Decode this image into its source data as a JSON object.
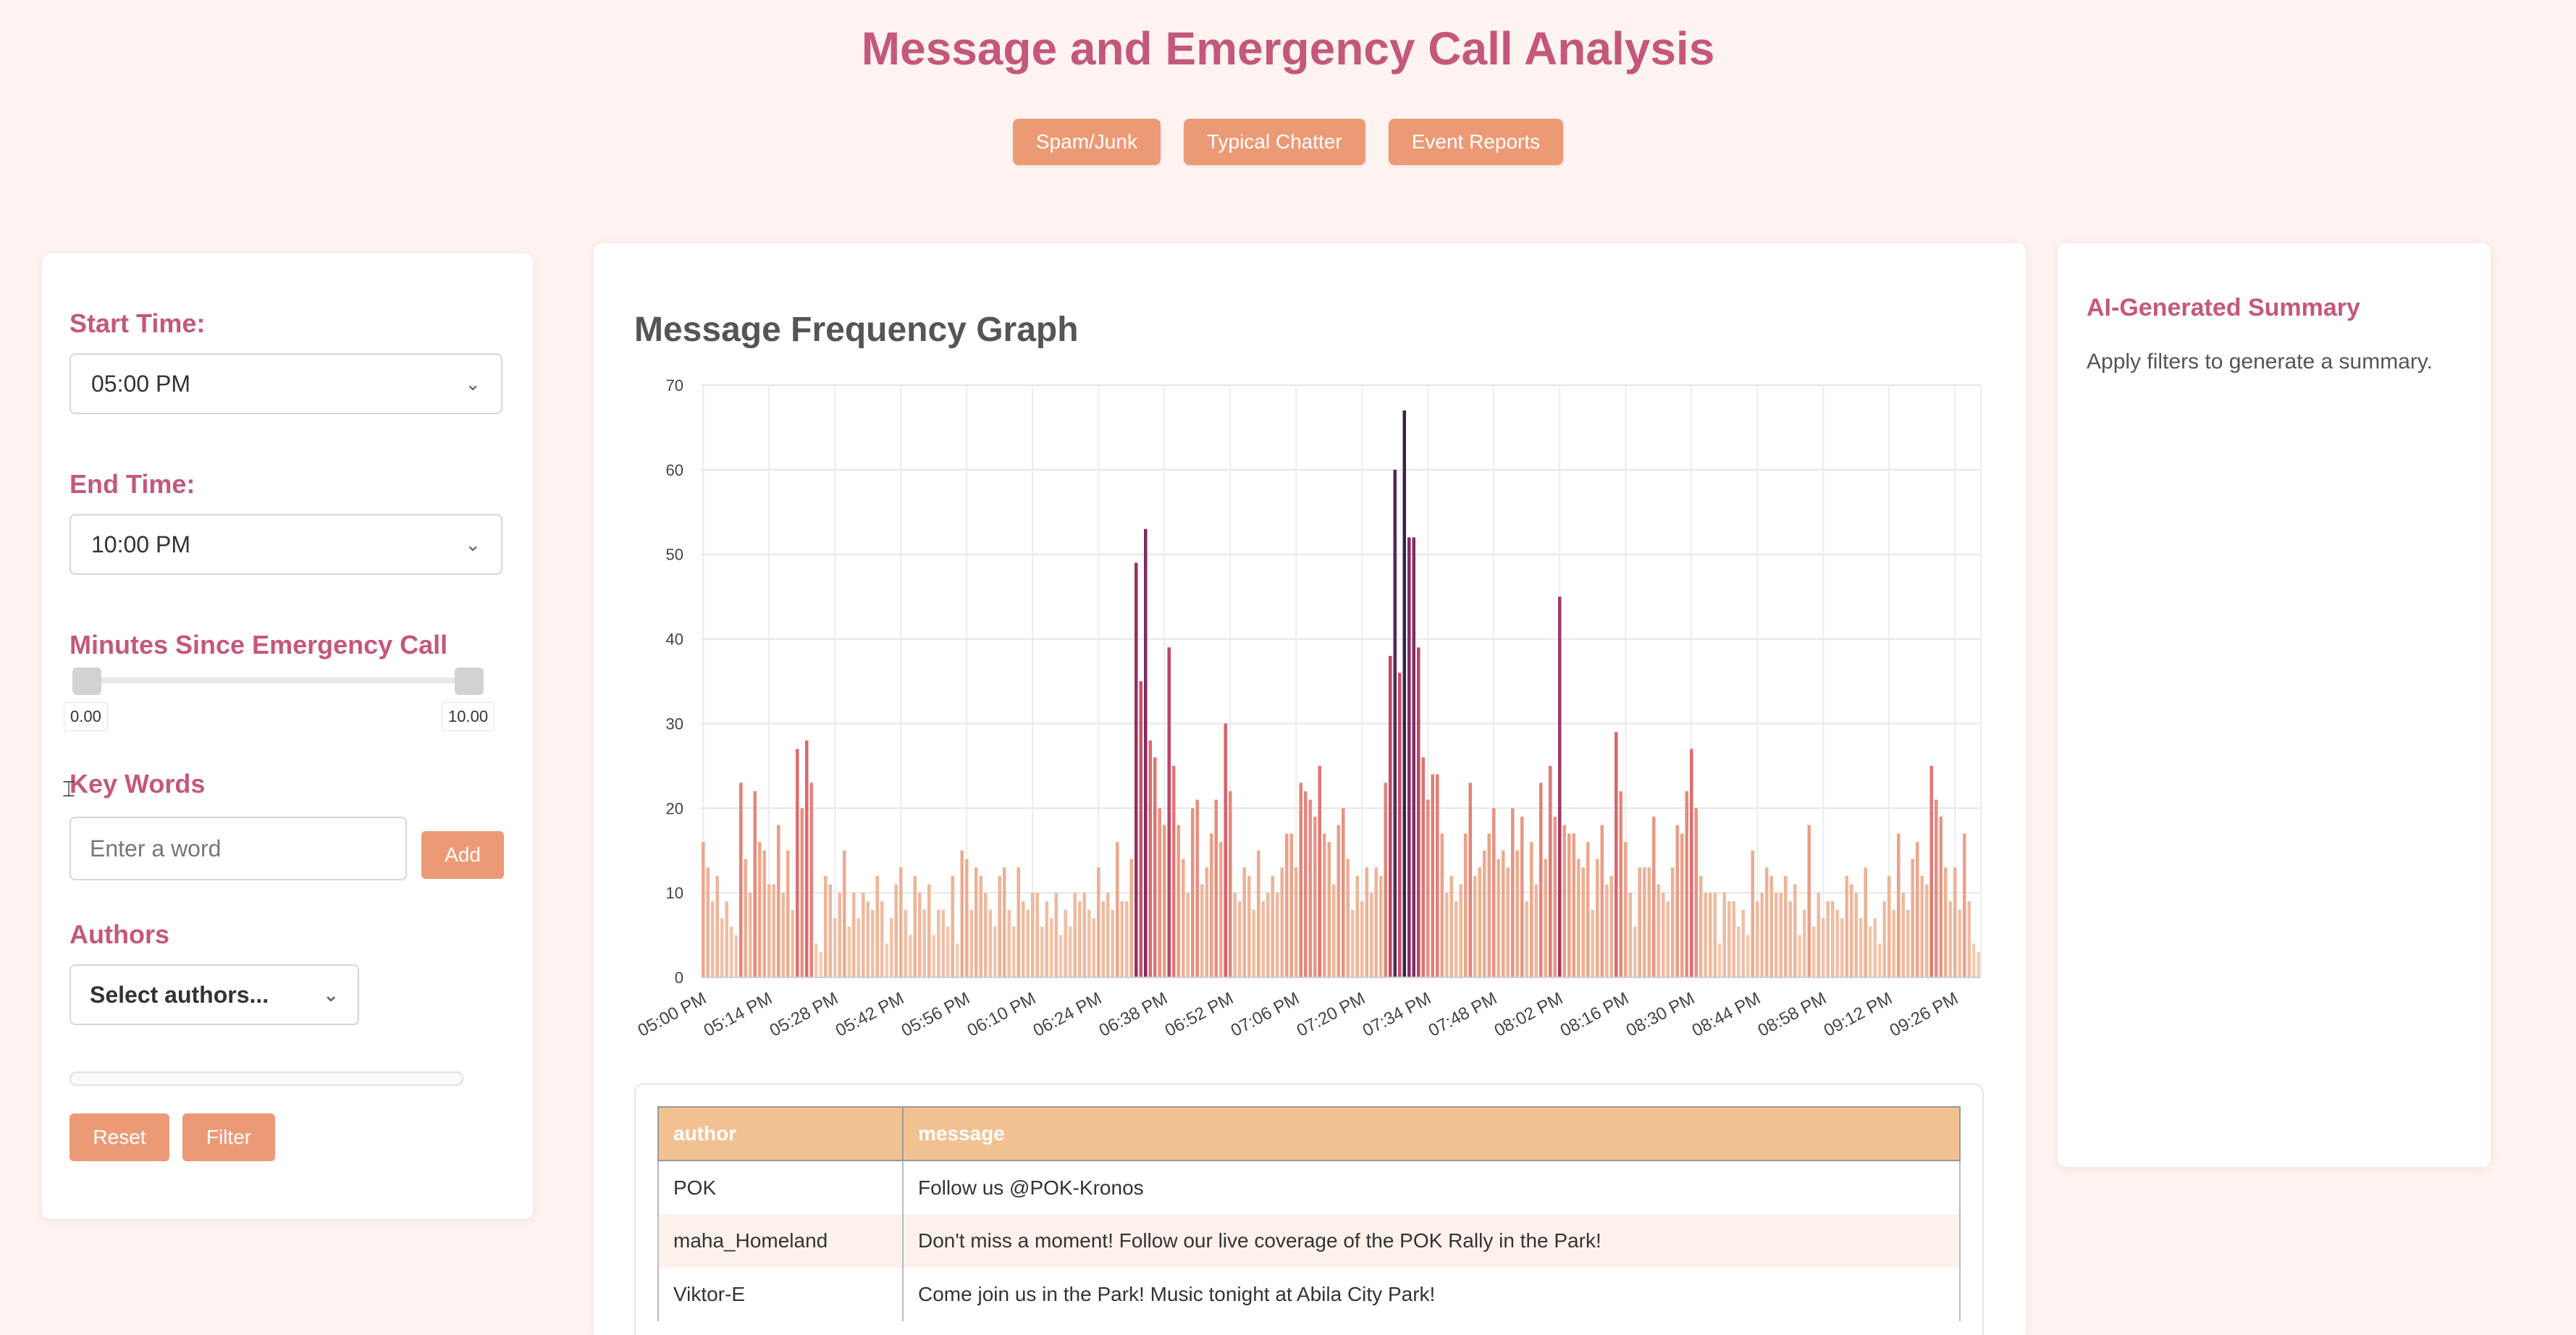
{
  "title": "Message and Emergency Call Analysis",
  "category_buttons": [
    "Spam/Junk",
    "Typical Chatter",
    "Event Reports"
  ],
  "filters": {
    "start_label": "Start Time:",
    "start_value": "05:00 PM",
    "end_label": "End Time:",
    "end_value": "10:00 PM",
    "minutes_label": "Minutes Since Emergency Call",
    "slider_min": "0.00",
    "slider_max": "10.00",
    "keywords_label": "Key Words",
    "keyword_placeholder": "Enter a word",
    "add_label": "Add",
    "authors_label": "Authors",
    "authors_placeholder": "Select authors...",
    "reset_label": "Reset",
    "filter_label": "Filter"
  },
  "graph": {
    "title": "Message Frequency Graph"
  },
  "chart_data": {
    "type": "bar",
    "title": "Message Frequency Graph",
    "ylim": [
      0,
      70
    ],
    "yticks": [
      0,
      10,
      20,
      30,
      40,
      50,
      60,
      70
    ],
    "xticks": [
      "05:00 PM",
      "05:14 PM",
      "05:28 PM",
      "05:42 PM",
      "05:56 PM",
      "06:10 PM",
      "06:24 PM",
      "06:38 PM",
      "06:52 PM",
      "07:06 PM",
      "07:20 PM",
      "07:34 PM",
      "07:48 PM",
      "08:02 PM",
      "08:16 PM",
      "08:30 PM",
      "08:44 PM",
      "08:58 PM",
      "09:12 PM",
      "09:26 PM"
    ],
    "interval_minutes": 1,
    "values": [
      16,
      13,
      9,
      12,
      7,
      9,
      6,
      5,
      23,
      14,
      10,
      22,
      16,
      15,
      11,
      11,
      18,
      10,
      15,
      8,
      27,
      20,
      28,
      23,
      4,
      3,
      12,
      11,
      7,
      10,
      15,
      6,
      10,
      7,
      10,
      9,
      8,
      12,
      9,
      4,
      7,
      11,
      13,
      8,
      5,
      12,
      10,
      8,
      11,
      5,
      8,
      8,
      6,
      12,
      4,
      15,
      14,
      8,
      13,
      12,
      10,
      8,
      6,
      12,
      13,
      8,
      6,
      13,
      9,
      8,
      10,
      10,
      6,
      9,
      7,
      10,
      5,
      8,
      6,
      10,
      9,
      10,
      8,
      7,
      13,
      9,
      10,
      8,
      16,
      9,
      9,
      14,
      49,
      35,
      53,
      28,
      26,
      20,
      18,
      39,
      25,
      18,
      14,
      10,
      20,
      21,
      11,
      13,
      17,
      21,
      16,
      30,
      22,
      10,
      9,
      13,
      12,
      8,
      15,
      9,
      10,
      12,
      10,
      13,
      17,
      17,
      13,
      23,
      22,
      21,
      19,
      25,
      17,
      16,
      11,
      18,
      20,
      14,
      8,
      12,
      9,
      13,
      10,
      13,
      12,
      23,
      38,
      60,
      36,
      67,
      52,
      52,
      39,
      26,
      21,
      24,
      24,
      17,
      10,
      12,
      9,
      11,
      17,
      23,
      12,
      13,
      15,
      17,
      20,
      14,
      15,
      13,
      20,
      15,
      19,
      9,
      16,
      11,
      23,
      14,
      25,
      19,
      45,
      18,
      17,
      17,
      14,
      13,
      16,
      8,
      14,
      18,
      11,
      12,
      29,
      22,
      16,
      10,
      6,
      13,
      13,
      13,
      19,
      11,
      10,
      9,
      13,
      18,
      17,
      22,
      27,
      20,
      12,
      10,
      10,
      10,
      4,
      10,
      9,
      9,
      6,
      8,
      5,
      15,
      9,
      10,
      13,
      12,
      10,
      10,
      12,
      9,
      11,
      5,
      8,
      18,
      6,
      10,
      7,
      9,
      9,
      8,
      7,
      12,
      11,
      10,
      7,
      13,
      6,
      7,
      4,
      9,
      12,
      8,
      17,
      10,
      8,
      14,
      16,
      12,
      11,
      25,
      21,
      19,
      13,
      9,
      13,
      8,
      17,
      9,
      4,
      3
    ]
  },
  "table": {
    "headers": [
      "author",
      "message"
    ],
    "rows": [
      {
        "author": "POK",
        "message": "Follow us @POK-Kronos"
      },
      {
        "author": "maha_Homeland",
        "message": "Don't miss a moment! Follow our live coverage of the POK Rally in the Park!"
      },
      {
        "author": "Viktor-E",
        "message": "Come join us in the Park! Music tonight at Abila City Park!"
      }
    ]
  },
  "summary": {
    "title": "AI-Generated Summary",
    "text": "Apply filters to generate a summary."
  },
  "colors": {
    "accent": "#c4587a",
    "button": "#ec9a76",
    "header": "#f2c192",
    "bar_low": "#f3d3bf",
    "bar_high": "#2c2348"
  },
  "icons": [
    "chevron-down-icon",
    "cursor-icon"
  ]
}
